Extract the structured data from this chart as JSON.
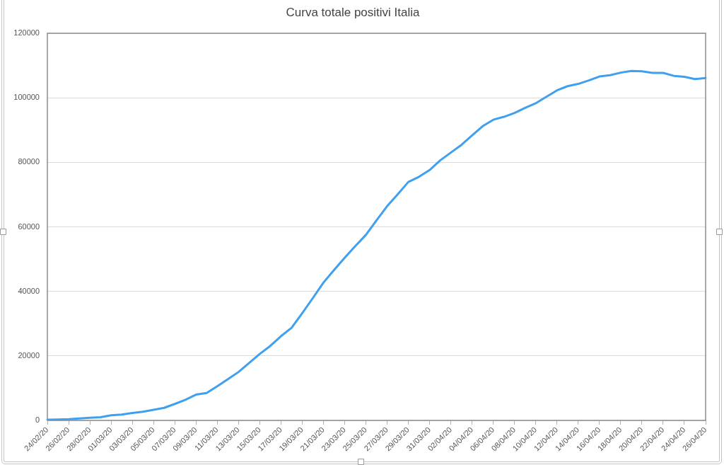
{
  "chart_data": {
    "type": "line",
    "title": "Curva totale positivi Italia",
    "categories": [
      "24/02/20",
      null,
      "26/02/20",
      null,
      "28/02/20",
      null,
      "01/03/20",
      null,
      "03/03/20",
      null,
      "05/03/20",
      null,
      "07/03/20",
      null,
      "09/03/20",
      null,
      "11/03/20",
      null,
      "13/03/20",
      null,
      "15/03/20",
      null,
      "17/03/20",
      null,
      "19/03/20",
      null,
      "21/03/20",
      null,
      "23/03/20",
      null,
      "25/03/20",
      null,
      "27/03/20",
      null,
      "29/03/20",
      null,
      "31/03/20",
      null,
      "02/04/20",
      null,
      "04/04/20",
      null,
      "06/04/20",
      null,
      "08/04/20",
      null,
      "10/04/20",
      null,
      "12/04/20",
      null,
      "14/04/20",
      null,
      "16/04/20",
      null,
      "18/04/20",
      null,
      "20/04/20",
      null,
      "22/04/20",
      null,
      "24/04/20",
      null,
      "26/04/20"
    ],
    "values": [
      200,
      300,
      400,
      600,
      800,
      1000,
      1600,
      1800,
      2300,
      2700,
      3300,
      3900,
      5100,
      6400,
      8000,
      8500,
      10600,
      12800,
      15000,
      17800,
      20600,
      23100,
      26100,
      28700,
      33200,
      37900,
      42700,
      46600,
      50400,
      54000,
      57500,
      62000,
      66400,
      70100,
      73900,
      75500,
      77600,
      80600,
      83000,
      85400,
      88300,
      91200,
      93200,
      94100,
      95300,
      96900,
      98300,
      100300,
      102300,
      103600,
      104300,
      105400,
      106600,
      107000,
      107800,
      108300,
      108200,
      107700,
      107700,
      106800,
      106500,
      105800,
      106100
    ],
    "color": "#40a0f0",
    "ylim": [
      0,
      120000
    ],
    "yticks": [
      0,
      20000,
      40000,
      60000,
      80000,
      100000,
      120000
    ],
    "grid": "y"
  }
}
